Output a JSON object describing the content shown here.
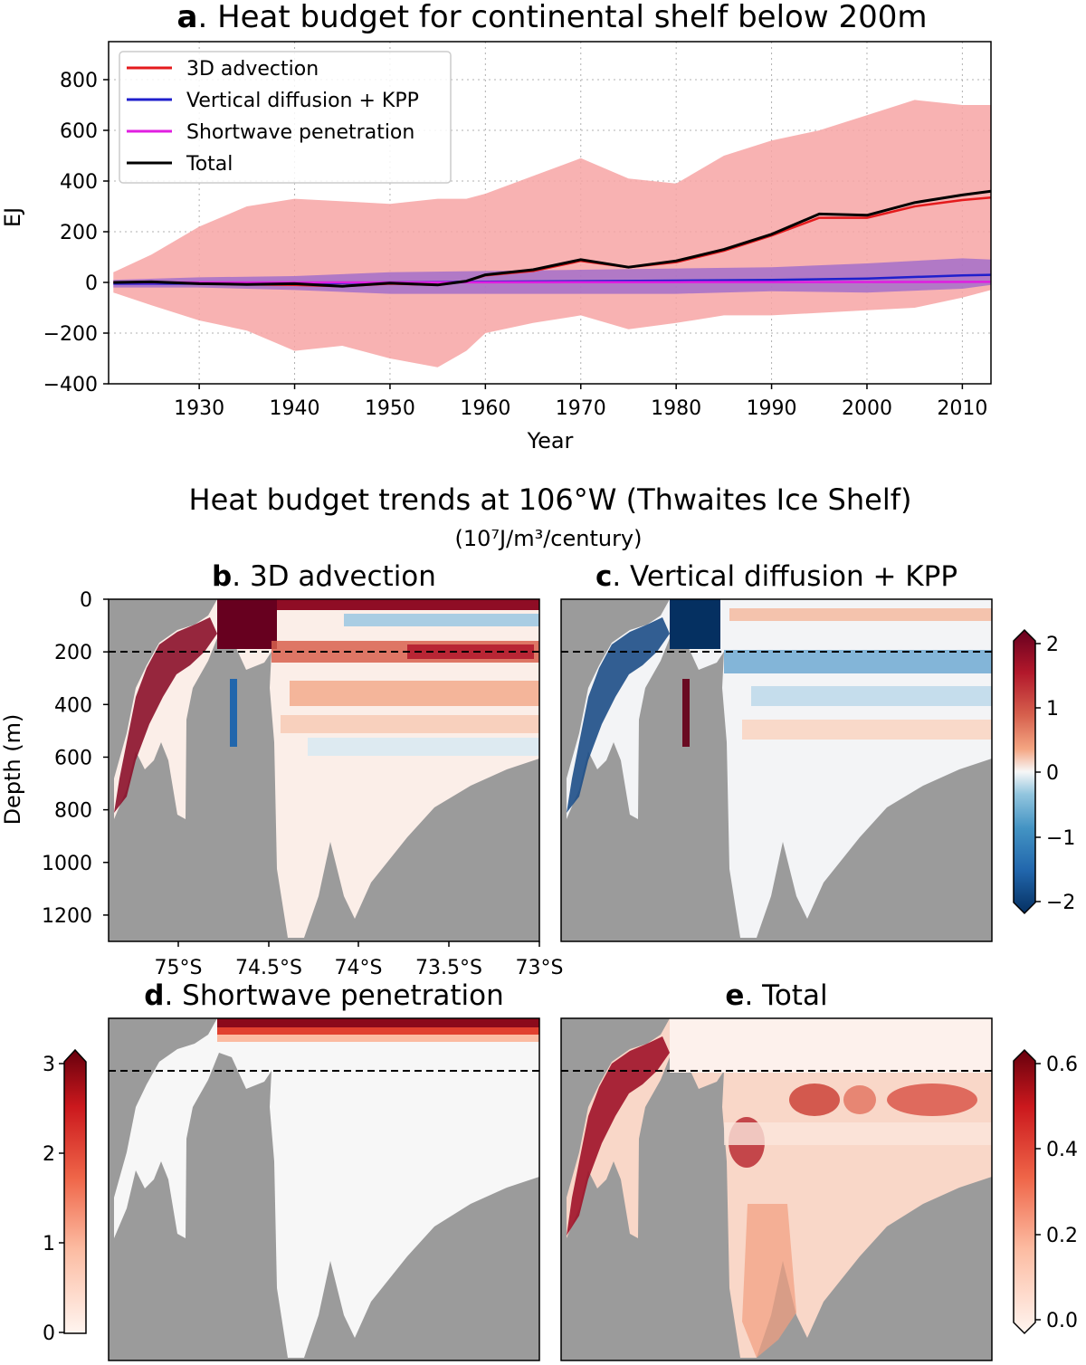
{
  "figure": {
    "trends_title": "Heat budget trends at 106°W (Thwaites Ice Shelf)",
    "trends_units": "(10⁷J/m³/century)"
  },
  "colors": {
    "advection": "#e41a1c",
    "diffusion": "#1f1fcc",
    "shortwave": "#e01ee0",
    "total": "#000000",
    "advection_band": "#f7a5a5",
    "diffusion_band": "#9a66cc",
    "land": "#9b9b9b",
    "red_dark": "#67001f",
    "blue_dark": "#053061"
  },
  "chart_data": [
    {
      "panel": "a",
      "type": "line",
      "title_letter": "a",
      "title": ". Heat budget for continental shelf below 200m",
      "xlabel": "Year",
      "ylabel": "EJ",
      "xlim": [
        1920.5,
        2013
      ],
      "ylim": [
        -400,
        950
      ],
      "xticks": [
        1930,
        1940,
        1950,
        1960,
        1970,
        1980,
        1990,
        2000,
        2010
      ],
      "yticks": [
        -400,
        -200,
        0,
        200,
        400,
        600,
        800
      ],
      "ytick_labels": [
        "−400",
        "−200",
        "0",
        "200",
        "400",
        "600",
        "800"
      ],
      "grid": true,
      "legend_position": "upper left",
      "series": [
        {
          "name": "3D advection",
          "color_key": "advection",
          "x": [
            1921,
            1925,
            1930,
            1935,
            1940,
            1945,
            1950,
            1955,
            1958,
            1960,
            1965,
            1970,
            1975,
            1980,
            1985,
            1990,
            1995,
            2000,
            2005,
            2010,
            2013
          ],
          "y": [
            0,
            2,
            -5,
            -8,
            -10,
            -15,
            -5,
            -10,
            5,
            28,
            45,
            85,
            60,
            80,
            125,
            185,
            255,
            255,
            300,
            325,
            335
          ],
          "band_upper": [
            40,
            110,
            220,
            300,
            330,
            320,
            310,
            330,
            330,
            350,
            420,
            490,
            410,
            390,
            500,
            560,
            600,
            660,
            720,
            700,
            700
          ],
          "band_lower": [
            -40,
            -90,
            -150,
            -190,
            -270,
            -250,
            -300,
            -335,
            -270,
            -200,
            -160,
            -130,
            -185,
            -160,
            -130,
            -130,
            -120,
            -110,
            -100,
            -60,
            -30
          ]
        },
        {
          "name": "Vertical diffusion + KPP",
          "color_key": "diffusion",
          "x": [
            1921,
            1930,
            1940,
            1950,
            1960,
            1970,
            1980,
            1990,
            2000,
            2010,
            2013
          ],
          "y": [
            -5,
            -5,
            -5,
            0,
            3,
            5,
            7,
            10,
            15,
            28,
            30
          ],
          "band_upper": [
            10,
            20,
            25,
            40,
            45,
            50,
            55,
            60,
            75,
            95,
            90
          ],
          "band_lower": [
            -20,
            -20,
            -30,
            -45,
            -45,
            -45,
            -45,
            -35,
            -40,
            -25,
            -10
          ]
        },
        {
          "name": "Shortwave penetration",
          "color_key": "shortwave",
          "x": [
            1921,
            1950,
            1980,
            2013
          ],
          "y": [
            0,
            0,
            1,
            2
          ]
        },
        {
          "name": "Total",
          "color_key": "total",
          "x": [
            1921,
            1925,
            1930,
            1935,
            1940,
            1945,
            1950,
            1955,
            1958,
            1960,
            1965,
            1970,
            1975,
            1980,
            1985,
            1990,
            1995,
            2000,
            2005,
            2010,
            2013
          ],
          "y": [
            0,
            2,
            -5,
            -8,
            -5,
            -15,
            -3,
            -10,
            5,
            30,
            50,
            90,
            60,
            85,
            130,
            190,
            270,
            265,
            315,
            345,
            360
          ]
        }
      ]
    },
    {
      "panel": "b",
      "type": "heatmap",
      "title_letter": "b",
      "title": ". 3D advection",
      "ylabel": "Depth (m)",
      "ylim": [
        1300,
        0
      ],
      "yticks": [
        0,
        200,
        400,
        600,
        800,
        1000,
        1200
      ],
      "xticks": [
        "75°S",
        "74.5°S",
        "74°S",
        "73.5°S",
        "73°S"
      ],
      "colorbar": {
        "ticks": [
          "2",
          "1",
          "0",
          "−1",
          "−2"
        ],
        "range": [
          -2,
          2
        ],
        "cmap": "RdBu_r"
      }
    },
    {
      "panel": "c",
      "type": "heatmap",
      "title_letter": "c",
      "title": ". Vertical diffusion + KPP",
      "range": [
        -2,
        2
      ]
    },
    {
      "panel": "d",
      "type": "heatmap",
      "title_letter": "d",
      "title": ". Shortwave penetration",
      "colorbar": {
        "ticks": [
          "3",
          "2",
          "1",
          "0"
        ],
        "range": [
          0,
          3.2
        ],
        "cmap": "Reds"
      }
    },
    {
      "panel": "e",
      "type": "heatmap",
      "title_letter": "e",
      "title": ". Total",
      "colorbar": {
        "ticks": [
          "0.6",
          "0.4",
          "0.2",
          "0.0"
        ],
        "range": [
          0,
          0.6
        ],
        "cmap": "Reds"
      }
    }
  ]
}
